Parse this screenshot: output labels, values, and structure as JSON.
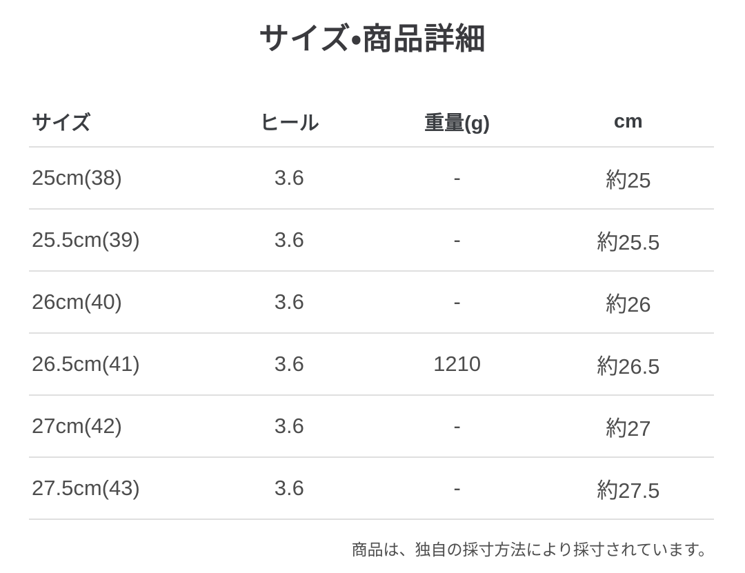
{
  "page": {
    "title": "サイズ・商品詳細",
    "footer_note": "商品は、独自の採寸方法により採寸されています。"
  },
  "table": {
    "columns": [
      {
        "label": "サイズ",
        "align": "left"
      },
      {
        "label": "ヒール",
        "align": "center"
      },
      {
        "label": "重量(g)",
        "align": "center"
      },
      {
        "label": "cm",
        "align": "center"
      }
    ],
    "rows": [
      {
        "size": "25cm(38)",
        "heel": "3.6",
        "weight_g": "-",
        "cm": "約25"
      },
      {
        "size": "25.5cm(39)",
        "heel": "3.6",
        "weight_g": "-",
        "cm": "約25.5"
      },
      {
        "size": "26cm(40)",
        "heel": "3.6",
        "weight_g": "-",
        "cm": "約26"
      },
      {
        "size": "26.5cm(41)",
        "heel": "3.6",
        "weight_g": "1210",
        "cm": "約26.5"
      },
      {
        "size": "27cm(42)",
        "heel": "3.6",
        "weight_g": "-",
        "cm": "約27"
      },
      {
        "size": "27.5cm(43)",
        "heel": "3.6",
        "weight_g": "-",
        "cm": "約27.5"
      }
    ]
  },
  "colors": {
    "background": "#ffffff",
    "title_text": "#3a3a3e",
    "header_text": "#3b3e42",
    "body_text": "#4d4d4d",
    "divider": "#dfdfdf"
  }
}
